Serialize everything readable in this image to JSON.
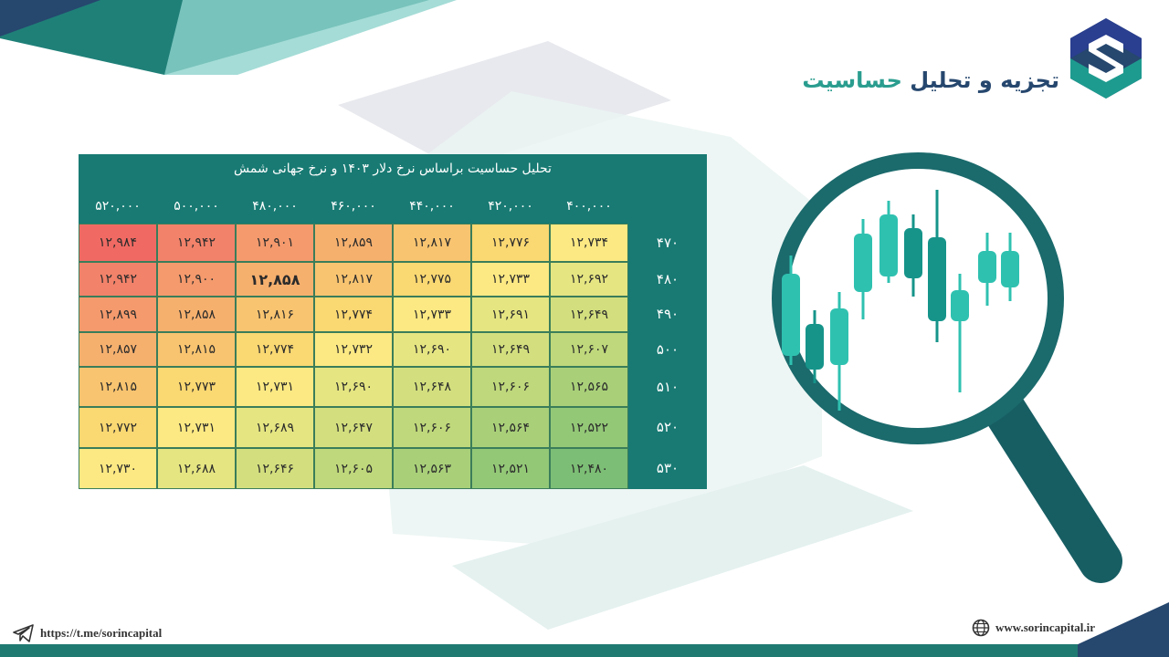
{
  "header": {
    "title_dark": "تجزیه و تحلیل",
    "title_accent": "حساسیت"
  },
  "table": {
    "title": "تحلیل حساسیت براساس نرخ دلار ۱۴۰۳ و نرخ جهانی شمش",
    "columns": [
      "۵۲۰,۰۰۰",
      "۵۰۰,۰۰۰",
      "۴۸۰,۰۰۰",
      "۴۶۰,۰۰۰",
      "۴۴۰,۰۰۰",
      "۴۲۰,۰۰۰",
      "۴۰۰,۰۰۰"
    ],
    "rows": [
      {
        "label": "۴۷۰",
        "values": [
          "۱۲,۹۸۴",
          "۱۲,۹۴۲",
          "۱۲,۹۰۱",
          "۱۲,۸۵۹",
          "۱۲,۸۱۷",
          "۱۲,۷۷۶",
          "۱۲,۷۳۴"
        ],
        "colors": [
          "#f06a63",
          "#f2826a",
          "#f49a6d",
          "#f6b06e",
          "#f8c470",
          "#fad872",
          "#fce983"
        ]
      },
      {
        "label": "۴۸۰",
        "values": [
          "۱۲,۹۴۲",
          "۱۲,۹۰۰",
          "۱۲,۸۵۸",
          "۱۲,۸۱۷",
          "۱۲,۷۷۵",
          "۱۲,۷۳۳",
          "۱۲,۶۹۲"
        ],
        "colors": [
          "#f2826a",
          "#f49a6d",
          "#f6b06e",
          "#f8c470",
          "#fad872",
          "#fce983",
          "#e5e582"
        ]
      },
      {
        "label": "۴۹۰",
        "values": [
          "۱۲,۸۹۹",
          "۱۲,۸۵۸",
          "۱۲,۸۱۶",
          "۱۲,۷۷۴",
          "۱۲,۷۳۳",
          "۱۲,۶۹۱",
          "۱۲,۶۴۹"
        ],
        "colors": [
          "#f49a6d",
          "#f6b06e",
          "#f8c470",
          "#fad872",
          "#fce983",
          "#e5e582",
          "#d3df7e"
        ]
      },
      {
        "label": "۵۰۰",
        "values": [
          "۱۲,۸۵۷",
          "۱۲,۸۱۵",
          "۱۲,۷۷۴",
          "۱۲,۷۳۲",
          "۱۲,۶۹۰",
          "۱۲,۶۴۹",
          "۱۲,۶۰۷"
        ],
        "colors": [
          "#f6b06e",
          "#f8c470",
          "#fad872",
          "#fce983",
          "#e5e582",
          "#d3df7e",
          "#bfd87b"
        ]
      },
      {
        "label": "۵۱۰",
        "values": [
          "۱۲,۸۱۵",
          "۱۲,۷۷۳",
          "۱۲,۷۳۱",
          "۱۲,۶۹۰",
          "۱۲,۶۴۸",
          "۱۲,۶۰۶",
          "۱۲,۵۶۵"
        ],
        "colors": [
          "#f8c470",
          "#fad872",
          "#fce983",
          "#e5e582",
          "#d3df7e",
          "#bfd87b",
          "#a9d079"
        ]
      },
      {
        "label": "۵۲۰",
        "values": [
          "۱۲,۷۷۲",
          "۱۲,۷۳۱",
          "۱۲,۶۸۹",
          "۱۲,۶۴۷",
          "۱۲,۶۰۶",
          "۱۲,۵۶۴",
          "۱۲,۵۲۲"
        ],
        "colors": [
          "#fad872",
          "#fce983",
          "#e5e582",
          "#d3df7e",
          "#bfd87b",
          "#a9d079",
          "#93c877"
        ]
      },
      {
        "label": "۵۳۰",
        "values": [
          "۱۲,۷۳۰",
          "۱۲,۶۸۸",
          "۱۲,۶۴۶",
          "۱۲,۶۰۵",
          "۱۲,۵۶۳",
          "۱۲,۵۲۱",
          "۱۲,۴۸۰"
        ],
        "colors": [
          "#fce983",
          "#e5e582",
          "#d3df7e",
          "#bfd87b",
          "#a9d079",
          "#93c877",
          "#7cbe75"
        ]
      }
    ],
    "highlight": {
      "row": 1,
      "col": 2
    }
  },
  "footer": {
    "telegram": "https://t.me/sorincapital",
    "website": "www.sorincapital.ir"
  },
  "icons": [
    "telegram-icon",
    "globe-icon",
    "magnifier-chart-icon",
    "brand-logo-icon"
  ]
}
